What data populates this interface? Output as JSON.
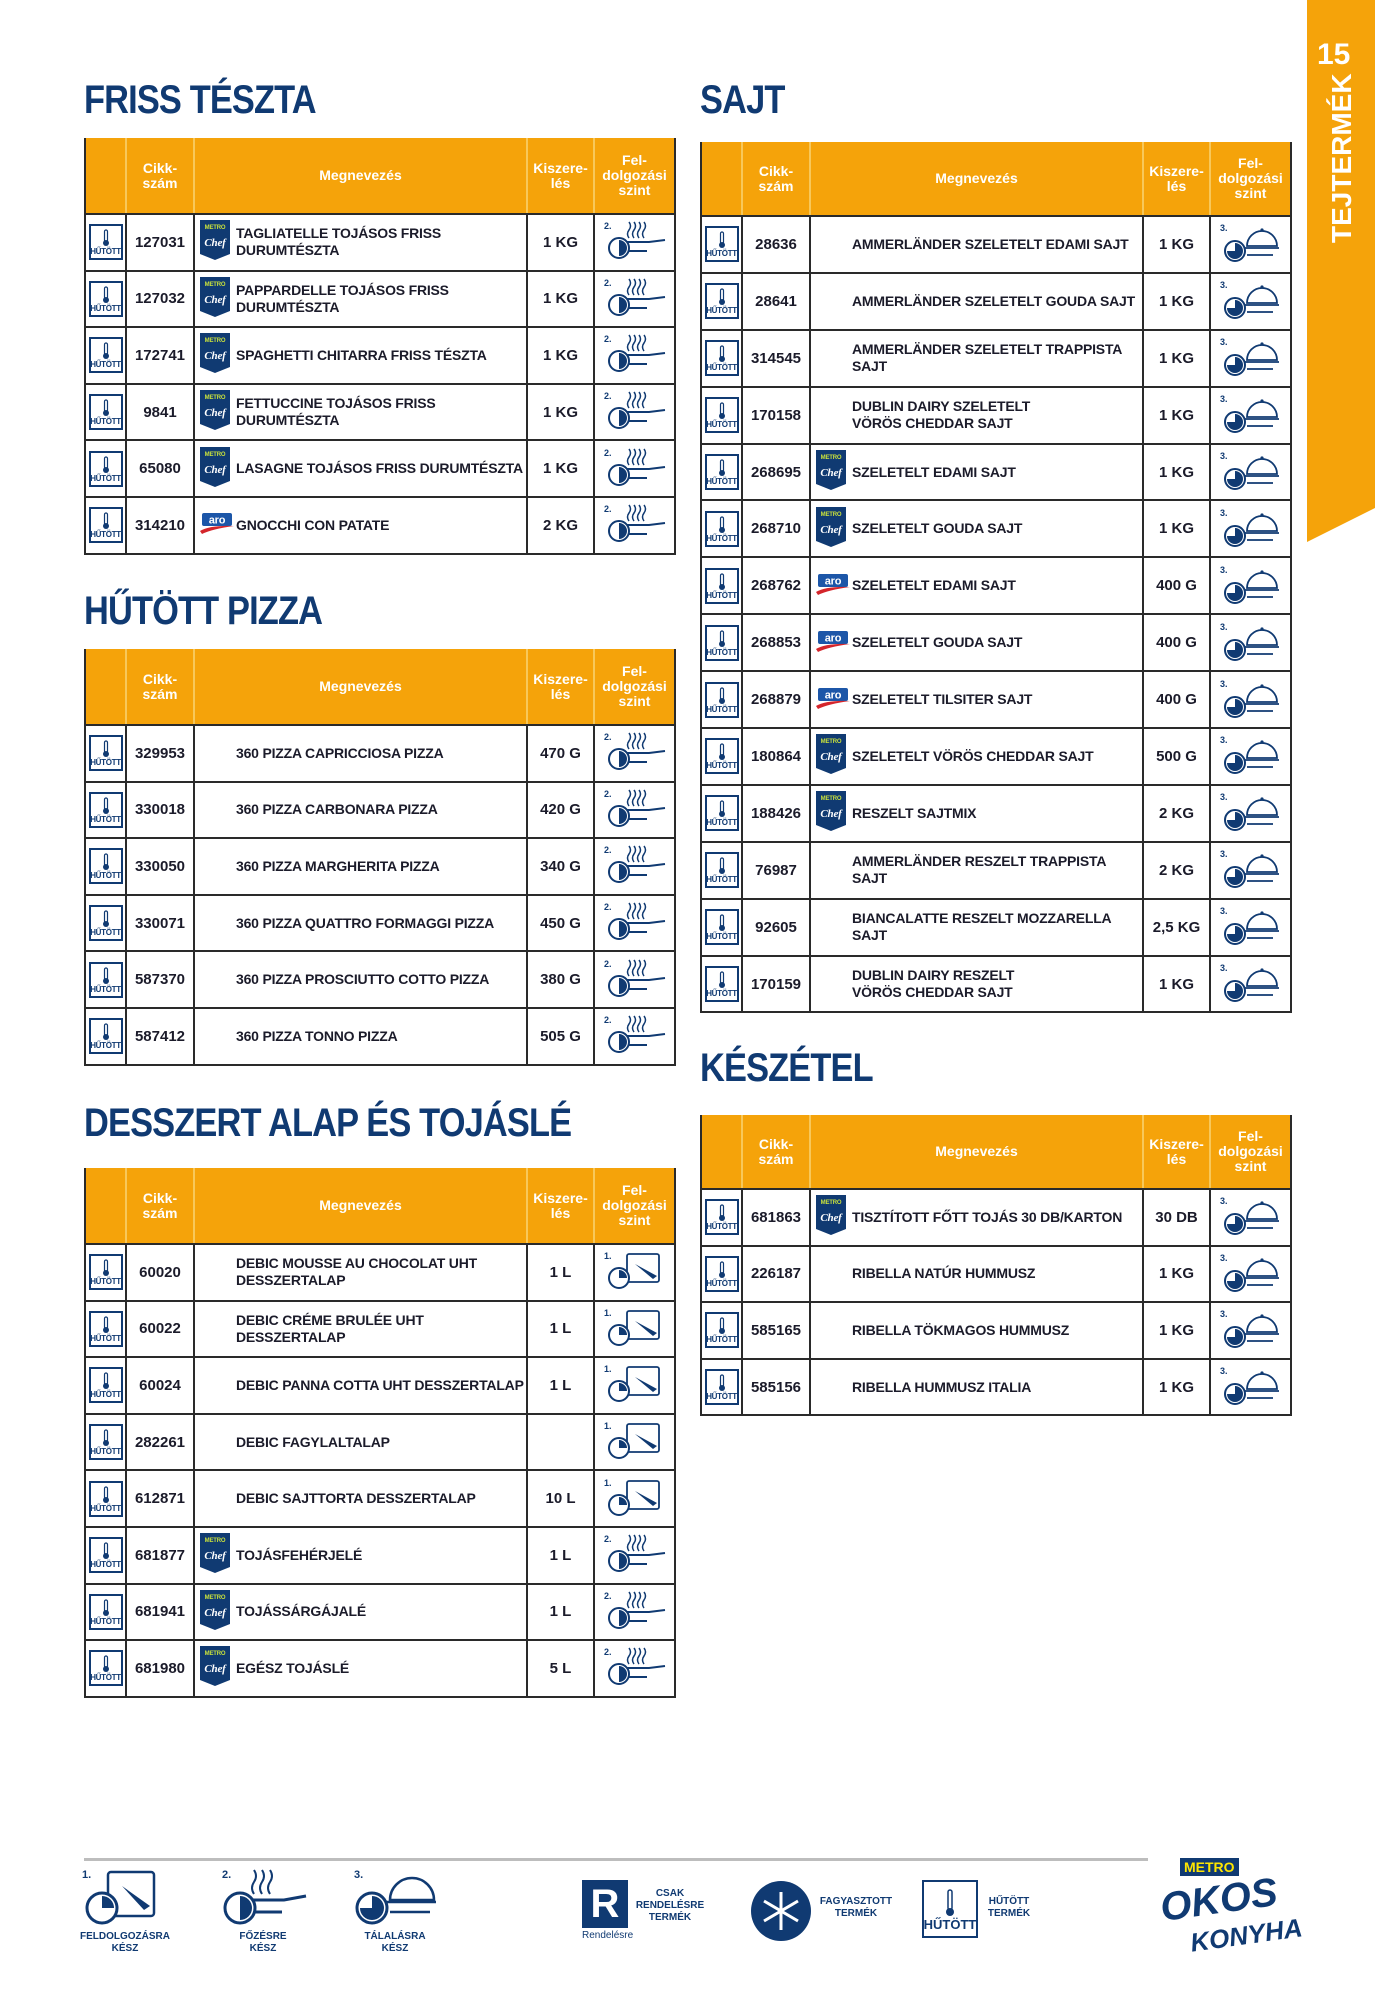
{
  "page_number": "15",
  "side_tab": "TEJTERMÉK",
  "colors": {
    "accent": "#f5a30a",
    "brand_blue": "#103a72"
  },
  "labels": {
    "hutott": "HŰTÖTT"
  },
  "headers": [
    "",
    "Cikk-\nszám",
    "Megnevezés",
    "Kiszere-\nlés",
    "Fel-\ndolgozási\nszint"
  ],
  "sections": [
    {
      "id": "friss-teszta",
      "title": "FRISS TÉSZTA",
      "rows": [
        {
          "code": "127031",
          "brand": "metro-chef",
          "name": "TAGLIATELLE TOJÁSOS FRISS DURUMTÉSZTA",
          "size": "1 KG",
          "level": "2."
        },
        {
          "code": "127032",
          "brand": "metro-chef",
          "name": "PAPPARDELLE TOJÁSOS FRISS DURUMTÉSZTA",
          "size": "1 KG",
          "level": "2."
        },
        {
          "code": "172741",
          "brand": "metro-chef",
          "name": "SPAGHETTI CHITARRA FRISS TÉSZTA",
          "size": "1 KG",
          "level": "2."
        },
        {
          "code": "9841",
          "brand": "metro-chef",
          "name": "FETTUCCINE TOJÁSOS FRISS DURUMTÉSZTA",
          "size": "1 KG",
          "level": "2."
        },
        {
          "code": "65080",
          "brand": "metro-chef",
          "name": "LASAGNE TOJÁSOS FRISS DURUMTÉSZTA",
          "size": "1 KG",
          "level": "2."
        },
        {
          "code": "314210",
          "brand": "aro",
          "name": "GNOCCHI CON PATATE",
          "size": "2 KG",
          "level": "2."
        }
      ]
    },
    {
      "id": "hutott-pizza",
      "title": "HŰTÖTT PIZZA",
      "rows": [
        {
          "code": "329953",
          "brand": "",
          "name": "360 PIZZA CAPRICCIOSA PIZZA",
          "size": "470 G",
          "level": "2."
        },
        {
          "code": "330018",
          "brand": "",
          "name": "360 PIZZA CARBONARA PIZZA",
          "size": "420 G",
          "level": "2."
        },
        {
          "code": "330050",
          "brand": "",
          "name": "360 PIZZA MARGHERITA PIZZA",
          "size": "340 G",
          "level": "2."
        },
        {
          "code": "330071",
          "brand": "",
          "name": "360 PIZZA QUATTRO FORMAGGI PIZZA",
          "size": "450 G",
          "level": "2."
        },
        {
          "code": "587370",
          "brand": "",
          "name": "360 PIZZA PROSCIUTTO COTTO PIZZA",
          "size": "380 G",
          "level": "2."
        },
        {
          "code": "587412",
          "brand": "",
          "name": "360 PIZZA TONNO PIZZA",
          "size": "505 G",
          "level": "2."
        }
      ]
    },
    {
      "id": "desszert",
      "title": "DESSZERT ALAP ÉS TOJÁSLÉ",
      "rows": [
        {
          "code": "60020",
          "brand": "",
          "name": "DEBIC MOUSSE AU CHOCOLAT UHT\nDESSZERTALAP",
          "size": "1 L",
          "level": "1."
        },
        {
          "code": "60022",
          "brand": "",
          "name": "DEBIC CRÉME BRULÉE UHT DESSZERTALAP",
          "size": "1 L",
          "level": "1."
        },
        {
          "code": "60024",
          "brand": "",
          "name": "DEBIC PANNA COTTA UHT DESSZERTALAP",
          "size": "1 L",
          "level": "1."
        },
        {
          "code": "282261",
          "brand": "",
          "name": "DEBIC FAGYLALTALAP",
          "size": "",
          "level": "1."
        },
        {
          "code": "612871",
          "brand": "",
          "name": "DEBIC SAJTTORTA DESSZERTALAP",
          "size": "10 L",
          "level": "1."
        },
        {
          "code": "681877",
          "brand": "metro-chef",
          "name": "TOJÁSFEHÉRJELÉ",
          "size": "1 L",
          "level": "2."
        },
        {
          "code": "681941",
          "brand": "metro-chef",
          "name": "TOJÁSSÁRGÁJALÉ",
          "size": "1 L",
          "level": "2."
        },
        {
          "code": "681980",
          "brand": "metro-chef",
          "name": "EGÉSZ TOJÁSLÉ",
          "size": "5 L",
          "level": "2."
        }
      ]
    },
    {
      "id": "sajt",
      "title": "SAJT",
      "rows": [
        {
          "code": "28636",
          "brand": "",
          "name": "AMMERLÄNDER SZELETELT EDAMI SAJT",
          "size": "1 KG",
          "level": "3."
        },
        {
          "code": "28641",
          "brand": "",
          "name": "AMMERLÄNDER SZELETELT GOUDA SAJT",
          "size": "1 KG",
          "level": "3."
        },
        {
          "code": "314545",
          "brand": "",
          "name": "AMMERLÄNDER SZELETELT TRAPPISTA SAJT",
          "size": "1 KG",
          "level": "3."
        },
        {
          "code": "170158",
          "brand": "",
          "name": "DUBLIN DAIRY SZELETELT\nVÖRÖS CHEDDAR SAJT",
          "size": "1 KG",
          "level": "3."
        },
        {
          "code": "268695",
          "brand": "metro-chef",
          "name": "SZELETELT EDAMI SAJT",
          "size": "1 KG",
          "level": "3."
        },
        {
          "code": "268710",
          "brand": "metro-chef",
          "name": "SZELETELT GOUDA SAJT",
          "size": "1 KG",
          "level": "3."
        },
        {
          "code": "268762",
          "brand": "aro",
          "name": "SZELETELT EDAMI SAJT",
          "size": "400 G",
          "level": "3."
        },
        {
          "code": "268853",
          "brand": "aro",
          "name": "SZELETELT GOUDA SAJT",
          "size": "400 G",
          "level": "3."
        },
        {
          "code": "268879",
          "brand": "aro",
          "name": "SZELETELT TILSITER SAJT",
          "size": "400 G",
          "level": "3."
        },
        {
          "code": "180864",
          "brand": "metro-chef",
          "name": "SZELETELT VÖRÖS CHEDDAR SAJT",
          "size": "500 G",
          "level": "3."
        },
        {
          "code": "188426",
          "brand": "metro-chef",
          "name": "RESZELT SAJTMIX",
          "size": "2 KG",
          "level": "3."
        },
        {
          "code": "76987",
          "brand": "",
          "name": "AMMERLÄNDER RESZELT TRAPPISTA SAJT",
          "size": "2 KG",
          "level": "3."
        },
        {
          "code": "92605",
          "brand": "",
          "name": "BIANCALATTE RESZELT MOZZARELLA SAJT",
          "size": "2,5 KG",
          "level": "3."
        },
        {
          "code": "170159",
          "brand": "",
          "name": "DUBLIN DAIRY RESZELT\nVÖRÖS CHEDDAR SAJT",
          "size": "1 KG",
          "level": "3."
        }
      ]
    },
    {
      "id": "keszetel",
      "title": "KÉSZÉTEL",
      "rows": [
        {
          "code": "681863",
          "brand": "metro-chef",
          "name": "TISZTÍTOTT FŐTT TOJÁS 30 DB/KARTON",
          "size": "30 DB",
          "level": "3."
        },
        {
          "code": "226187",
          "brand": "",
          "name": "RIBELLA NATÚR HUMMUSZ",
          "size": "1 KG",
          "level": "3."
        },
        {
          "code": "585165",
          "brand": "",
          "name": "RIBELLA TÖKMAGOS HUMMUSZ",
          "size": "1 KG",
          "level": "3."
        },
        {
          "code": "585156",
          "brand": "",
          "name": "RIBELLA HUMMUSZ ITALIA",
          "size": "1 KG",
          "level": "3."
        }
      ]
    }
  ],
  "legend": {
    "level1": {
      "num": "1.",
      "label": "FELDOLGOZÁSRA\nKÉSZ"
    },
    "level2": {
      "num": "2.",
      "label": "FŐZÉSRE\nKÉSZ"
    },
    "level3": {
      "num": "3.",
      "label": "TÁLALÁSRA\nKÉSZ"
    },
    "order_only": {
      "caption": "Rendelésre",
      "label": "CSAK\nRENDELÉSRE\nTERMÉK"
    },
    "frozen": {
      "label": "FAGYASZTOTT\nTERMÉK"
    },
    "chilled": {
      "label": "HŰTÖTT\nTERMÉK"
    }
  },
  "brand_logo": {
    "top": "METRO",
    "line1": "OKOS",
    "line2": "KONYHA"
  }
}
